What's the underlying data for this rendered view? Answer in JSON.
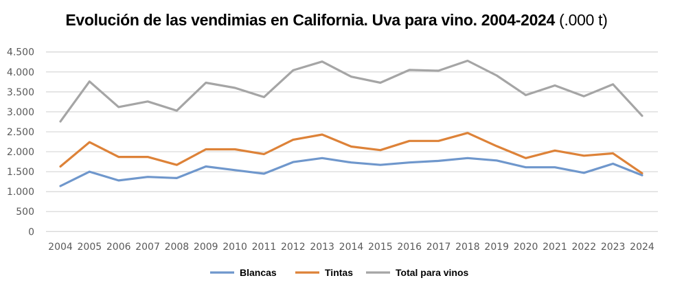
{
  "chart_data": {
    "type": "line",
    "title": "Evolución de las vendimias en California. Uva para vino. 2004-2024",
    "title_suffix": "(.000 t)",
    "xlabel": "",
    "ylabel": "",
    "ylim": [
      0,
      4500
    ],
    "yticks": [
      0,
      500,
      1000,
      1500,
      2000,
      2500,
      3000,
      3500,
      4000,
      4500
    ],
    "ytick_labels": [
      "0",
      "500",
      "1.000",
      "1.500",
      "2.000",
      "2.500",
      "3.000",
      "3.500",
      "4.000",
      "4.500"
    ],
    "grid": true,
    "legend_position": "bottom",
    "categories": [
      "2004",
      "2005",
      "2006",
      "2007",
      "2008",
      "2009",
      "2010",
      "2011",
      "2012",
      "2013",
      "2014",
      "2015",
      "2016",
      "2017",
      "2018",
      "2019",
      "2020",
      "2021",
      "2022",
      "2023",
      "2024"
    ],
    "series": [
      {
        "name": "Blancas",
        "color": "#6f97cc",
        "values": [
          1140,
          1500,
          1280,
          1370,
          1340,
          1630,
          1540,
          1450,
          1740,
          1840,
          1730,
          1670,
          1730,
          1770,
          1840,
          1780,
          1610,
          1610,
          1470,
          1700,
          1410
        ]
      },
      {
        "name": "Tintas",
        "color": "#dd8238",
        "values": [
          1630,
          2240,
          1870,
          1870,
          1670,
          2060,
          2060,
          1940,
          2300,
          2430,
          2130,
          2040,
          2270,
          2270,
          2470,
          2140,
          1840,
          2030,
          1900,
          1960,
          1460
        ]
      },
      {
        "name": "Total para vinos",
        "color": "#a5a5a5",
        "values": [
          2760,
          3760,
          3120,
          3260,
          3030,
          3730,
          3600,
          3370,
          4040,
          4260,
          3880,
          3730,
          4050,
          4030,
          4280,
          3910,
          3420,
          3660,
          3390,
          3690,
          2900
        ]
      }
    ]
  }
}
